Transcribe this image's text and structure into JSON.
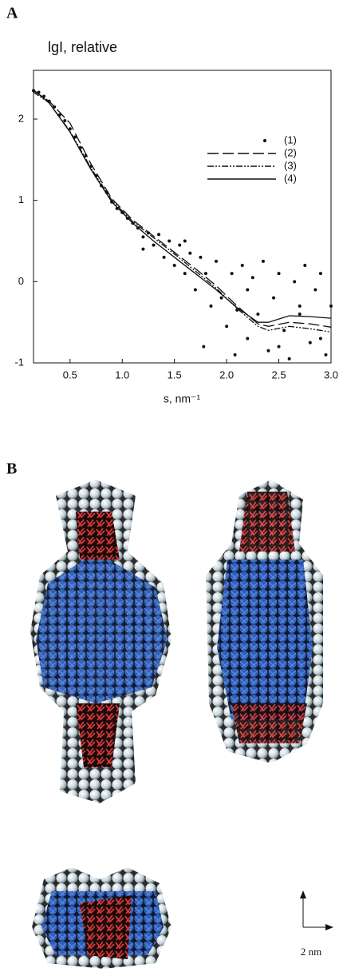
{
  "panels": {
    "a_label": "A",
    "b_label": "B",
    "scale_label": "2 nm"
  },
  "chart_data": {
    "type": "line",
    "title": "lgI, relative",
    "x_label": "s, nm⁻¹",
    "xlim": [
      0.15,
      3.0
    ],
    "ylim": [
      -1,
      2.6
    ],
    "xticks": [
      0.5,
      {
        "value": 1,
        "label": "1.0"
      },
      1.5,
      {
        "value": 2,
        "label": "2.0"
      },
      2.5,
      {
        "value": 3,
        "label": "3.0"
      }
    ],
    "yticks": [
      -1,
      0,
      1,
      2
    ],
    "legend": "upper right",
    "series": [
      {
        "name": "(1)",
        "color": "#111111",
        "style": "dots",
        "x": [
          0.15,
          0.2,
          0.25,
          0.3,
          0.35,
          0.4,
          0.45,
          0.5,
          0.55,
          0.6,
          0.65,
          0.7,
          0.75,
          0.8,
          0.85,
          0.9,
          0.95,
          1.0,
          1.05,
          1.1,
          1.15,
          1.2,
          1.25,
          1.3,
          1.35,
          1.4,
          1.45,
          1.5,
          1.55,
          1.6,
          1.65,
          1.7,
          1.75,
          1.78,
          1.8,
          1.85,
          1.9,
          1.95,
          2.0,
          2.05,
          2.08,
          2.1,
          2.15,
          2.2,
          2.25,
          2.3,
          2.35,
          2.4,
          2.45,
          2.5,
          2.55,
          2.6,
          2.65,
          2.7,
          2.75,
          2.8,
          2.85,
          2.9,
          2.95,
          3.0,
          1.2,
          1.6,
          2.2,
          2.5,
          2.9,
          2.7
        ],
        "values": [
          2.35,
          2.33,
          2.28,
          2.22,
          2.15,
          2.05,
          1.98,
          1.88,
          1.78,
          1.65,
          1.55,
          1.42,
          1.3,
          1.18,
          1.1,
          0.98,
          0.9,
          0.85,
          0.78,
          0.72,
          0.66,
          0.55,
          0.6,
          0.45,
          0.58,
          0.3,
          0.5,
          0.2,
          0.45,
          0.1,
          0.35,
          -0.1,
          0.3,
          -0.8,
          0.1,
          -0.3,
          0.25,
          -0.2,
          -0.55,
          0.1,
          -0.9,
          -0.35,
          0.2,
          -0.7,
          0.05,
          -0.4,
          0.25,
          -0.85,
          -0.2,
          0.1,
          -0.6,
          -0.95,
          0.0,
          -0.4,
          0.2,
          -0.75,
          -0.1,
          0.1,
          -0.9,
          -0.3,
          0.4,
          0.5,
          -0.1,
          -0.8,
          -0.7,
          -0.3
        ]
      },
      {
        "name": "(2)",
        "color": "#111111",
        "style": "dashed",
        "x": [
          0.15,
          0.3,
          0.5,
          0.7,
          0.9,
          1.1,
          1.3,
          1.5,
          1.7,
          1.9,
          2.1,
          2.3,
          2.4,
          2.6,
          2.8,
          3.0
        ],
        "values": [
          2.35,
          2.22,
          1.95,
          1.45,
          1.02,
          0.76,
          0.56,
          0.36,
          0.16,
          -0.05,
          -0.3,
          -0.52,
          -0.55,
          -0.5,
          -0.52,
          -0.56
        ]
      },
      {
        "name": "(3)",
        "color": "#111111",
        "style": "dashdotdot",
        "x": [
          0.15,
          0.3,
          0.5,
          0.7,
          0.9,
          1.1,
          1.3,
          1.5,
          1.7,
          1.9,
          2.1,
          2.3,
          2.4,
          2.6,
          2.8,
          3.0
        ],
        "values": [
          2.33,
          2.2,
          1.85,
          1.4,
          1.0,
          0.74,
          0.54,
          0.34,
          0.13,
          -0.08,
          -0.33,
          -0.55,
          -0.6,
          -0.55,
          -0.58,
          -0.62
        ]
      },
      {
        "name": "(4)",
        "color": "#111111",
        "style": "solid",
        "x": [
          0.15,
          0.3,
          0.5,
          0.7,
          0.9,
          1.1,
          1.3,
          1.5,
          1.7,
          1.9,
          2.1,
          2.3,
          2.4,
          2.6,
          2.8,
          3.0
        ],
        "values": [
          2.36,
          2.2,
          1.84,
          1.38,
          0.98,
          0.72,
          0.5,
          0.3,
          0.1,
          -0.1,
          -0.32,
          -0.5,
          -0.5,
          -0.42,
          -0.43,
          -0.45
        ]
      }
    ]
  }
}
